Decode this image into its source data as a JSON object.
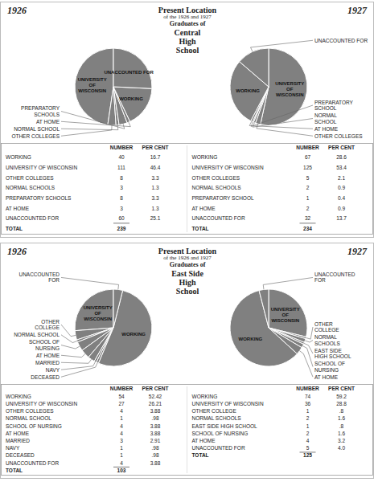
{
  "chart_data": [
    {
      "type": "pie",
      "title": "1926",
      "categories": [
        "UNIVERSITY\nOF\nWISCONSIN",
        "OTHER COLLEGES",
        "NORMAL SCHOOL",
        "PREPARATORY\nSCHOOLS",
        "AT HOME",
        "WORKING",
        "UNACCOUNTED FOR"
      ],
      "values": [
        111,
        8,
        3,
        8,
        3,
        40,
        60
      ]
    },
    {
      "type": "pie",
      "title": "1927",
      "categories": [
        "UNIVERSITY\nOF\nWISCONSIN",
        "OTHER COLLEGES",
        "NORMAL\nSCHOOL",
        "PREPARATORY\nSCHOOL",
        "AT HOME",
        "WORKING",
        "UNACCOUNTED FOR"
      ],
      "values": [
        125,
        5,
        2,
        1,
        2,
        67,
        32
      ]
    },
    {
      "type": "table",
      "title": [
        "Present Location",
        "of the 1926 and 1927",
        "Graduates of",
        "Central",
        "High",
        "School"
      ],
      "categories": [
        "WORKING",
        "UNIVERSITY OF WISCONSIN",
        "OTHER COLLEGES",
        "NORMAL SCHOOLS",
        "PREPARATORY SCHOOLS",
        "AT HOME",
        "UNACCOUNTED FOR",
        "TOTAL"
      ],
      "series": [
        {
          "name": "NUMBER",
          "values": [
            40,
            111,
            8,
            3,
            8,
            3,
            60,
            239
          ]
        },
        {
          "name": "PER CENT",
          "values": [
            16.7,
            46.4,
            3.3,
            1.3,
            3.3,
            1.3,
            25.1,
            null
          ],
          "value_labels": [
            "16.7",
            "46.4",
            "3.3",
            "1.3",
            "3.3",
            "1.3",
            "25.1",
            null
          ]
        }
      ]
    },
    {
      "type": "table",
      "categories": [
        "WORKING",
        "UNIVERSITY OF WISCONSIN",
        "OTHER COLLEGES",
        "NORMAL SCHOOLS",
        "PREPARATORY SCHOOL",
        "AT HOME",
        "UNACCOUNTED FOR",
        "TOTAL"
      ],
      "series": [
        {
          "name": "NUMBER",
          "values": [
            67,
            125,
            5,
            2,
            1,
            2,
            32,
            234
          ]
        },
        {
          "name": "PER CENT",
          "values": [
            28.6,
            53.4,
            2.1,
            0.9,
            0.4,
            0.9,
            13.7,
            null
          ],
          "value_labels": [
            "28.6",
            "53.4",
            "2.1",
            "0.9",
            "0.4",
            "0.9",
            "13.7",
            null
          ]
        }
      ]
    },
    {
      "type": "pie",
      "title": "1926",
      "categories": [
        "UNIVERSITY\nOF\nWISCONSIN",
        "OTHER\nCOLLEGE",
        "NORMAL SCHOOL",
        "SCHOOL OF\nNURSING",
        "AT HOME",
        "MARRIED",
        "NAVY",
        "DECEASED",
        "WORKING",
        "UNACCOUNTED\nFOR"
      ],
      "values": [
        27,
        4,
        1,
        4,
        4,
        3,
        1,
        1,
        54,
        4
      ]
    },
    {
      "type": "pie",
      "title": "1927",
      "categories": [
        "UNIVERSITY\nOF\nWISCONSIN",
        "OTHER\nCOLLEGE",
        "NORMAL\nSCHOOLS",
        "EAST SIDE\nHIGH SCHOOL",
        "SCHOOL OF\nNURSING",
        "AT HOME",
        "WORKING",
        "UNACCOUNTED\nFOR"
      ],
      "values": [
        36,
        1,
        2,
        1,
        2,
        4,
        74,
        5
      ]
    },
    {
      "type": "table",
      "title": [
        "Present Location",
        "of the 1926 and 1927",
        "Graduates of",
        "East Side",
        "High",
        "School"
      ],
      "categories": [
        "WORKING",
        "UNIVERSITY OF WISCONSIN",
        "OTHER COLLEGES",
        "NORMAL SCHOOL",
        "SCHOOL OF NURSING",
        "AT HOME",
        "MARRIED",
        "NAVY",
        "DECEASED",
        "UNACCOUNTED FOR",
        "TOTAL"
      ],
      "series": [
        {
          "name": "NUMBER",
          "values": [
            54,
            27,
            4,
            1,
            4,
            4,
            3,
            1,
            1,
            4,
            103
          ]
        },
        {
          "name": "PER CENT",
          "values": [
            52.42,
            26.21,
            3.88,
            0.98,
            3.88,
            3.88,
            2.91,
            0.98,
            0.98,
            3.88,
            null
          ],
          "value_labels": [
            "52.42",
            "26.21",
            "3.88",
            ".98",
            "3.88",
            "3.88",
            "2.91",
            ".98",
            ".98",
            "3.88",
            null
          ]
        }
      ]
    },
    {
      "type": "table",
      "categories": [
        "WORKING",
        "UNIVERSITY OF WISCONSIN",
        "OTHER COLLEGE",
        "NORMAL SCHOOLS",
        "EAST SIDE HIGH SCHOOL",
        "SCHOOL OF NURSING",
        "AT HOME",
        "UNACCOUNTED FOR",
        "TOTAL"
      ],
      "series": [
        {
          "name": "NUMBER",
          "values": [
            74,
            36,
            1,
            2,
            1,
            2,
            4,
            5,
            125
          ]
        },
        {
          "name": "PER CENT",
          "values": [
            59.2,
            28.8,
            0.8,
            1.6,
            0.8,
            1.6,
            3.2,
            4.0,
            null
          ],
          "value_labels": [
            "59.2",
            "28.8",
            ".8",
            "1.6",
            ".8",
            "1.6",
            "3.2",
            "4.0",
            null
          ]
        }
      ]
    }
  ]
}
